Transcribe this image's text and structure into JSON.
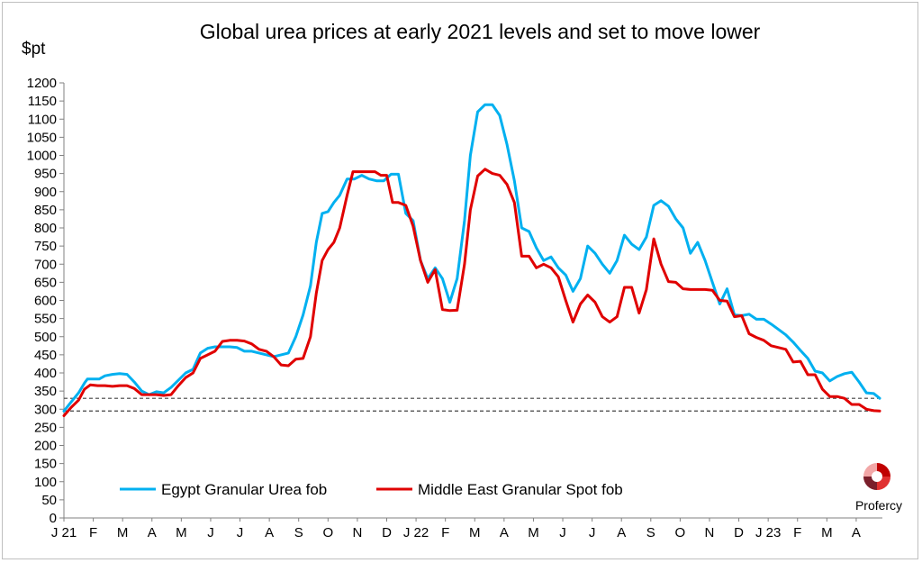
{
  "chart_data": {
    "type": "line",
    "title": "Global urea prices at early 2021 levels and set to move lower",
    "ylabel": "$pt",
    "ylim": [
      0,
      1200
    ],
    "ytick_step": 50,
    "x_labels": [
      "J 21",
      "F",
      "M",
      "A",
      "M",
      "J",
      "J",
      "A",
      "S",
      "O",
      "N",
      "D",
      "J 22",
      "F",
      "M",
      "A",
      "M",
      "J",
      "J",
      "A",
      "S",
      "O",
      "N",
      "D",
      "J 23",
      "F",
      "M",
      "A"
    ],
    "legend_placement": "bottom",
    "grid": false,
    "reference_lines": [
      330,
      295
    ],
    "series": [
      {
        "name": "Egypt Granular Urea fob",
        "color": "#00b0f0",
        "points": [
          [
            0.0,
            295
          ],
          [
            0.5,
            320
          ],
          [
            1.0,
            345
          ],
          [
            1.4,
            372
          ],
          [
            1.6,
            383
          ],
          [
            2.0,
            383
          ],
          [
            2.4,
            383
          ],
          [
            2.8,
            392
          ],
          [
            3.3,
            396
          ],
          [
            3.8,
            398
          ],
          [
            4.3,
            396
          ],
          [
            4.8,
            375
          ],
          [
            5.3,
            350
          ],
          [
            5.8,
            340
          ],
          [
            6.3,
            348
          ],
          [
            6.8,
            345
          ],
          [
            7.3,
            360
          ],
          [
            7.8,
            380
          ],
          [
            8.3,
            400
          ],
          [
            8.8,
            410
          ],
          [
            9.3,
            455
          ],
          [
            9.8,
            468
          ],
          [
            10.3,
            472
          ],
          [
            10.8,
            472
          ],
          [
            11.3,
            472
          ],
          [
            11.8,
            470
          ],
          [
            12.3,
            460
          ],
          [
            12.8,
            460
          ],
          [
            13.3,
            455
          ],
          [
            13.8,
            450
          ],
          [
            14.3,
            445
          ],
          [
            14.8,
            450
          ],
          [
            15.3,
            455
          ],
          [
            15.8,
            500
          ],
          [
            16.3,
            560
          ],
          [
            16.8,
            640
          ],
          [
            17.2,
            760
          ],
          [
            17.6,
            840
          ],
          [
            18.0,
            845
          ],
          [
            18.4,
            870
          ],
          [
            18.8,
            890
          ],
          [
            19.3,
            935
          ],
          [
            19.8,
            935
          ],
          [
            20.3,
            945
          ],
          [
            20.8,
            935
          ],
          [
            21.3,
            930
          ],
          [
            21.8,
            930
          ],
          [
            22.3,
            948
          ],
          [
            22.8,
            948
          ],
          [
            23.3,
            840
          ],
          [
            23.8,
            820
          ],
          [
            24.3,
            710
          ],
          [
            24.8,
            660
          ],
          [
            25.3,
            690
          ],
          [
            25.8,
            660
          ],
          [
            26.3,
            595
          ],
          [
            26.8,
            660
          ],
          [
            27.3,
            820
          ],
          [
            27.7,
            1000
          ],
          [
            28.2,
            1120
          ],
          [
            28.7,
            1140
          ],
          [
            29.2,
            1140
          ],
          [
            29.7,
            1110
          ],
          [
            30.2,
            1030
          ],
          [
            30.7,
            930
          ],
          [
            31.2,
            800
          ],
          [
            31.7,
            790
          ],
          [
            32.2,
            745
          ],
          [
            32.7,
            710
          ],
          [
            33.2,
            720
          ],
          [
            33.7,
            690
          ],
          [
            34.2,
            670
          ],
          [
            34.7,
            625
          ],
          [
            35.2,
            660
          ],
          [
            35.7,
            750
          ],
          [
            36.2,
            730
          ],
          [
            36.7,
            700
          ],
          [
            37.2,
            675
          ],
          [
            37.7,
            710
          ],
          [
            38.2,
            780
          ],
          [
            38.7,
            755
          ],
          [
            39.2,
            740
          ],
          [
            39.7,
            775
          ],
          [
            40.2,
            862
          ],
          [
            40.7,
            875
          ],
          [
            41.2,
            860
          ],
          [
            41.7,
            825
          ],
          [
            42.2,
            800
          ],
          [
            42.7,
            730
          ],
          [
            43.2,
            760
          ],
          [
            43.7,
            710
          ],
          [
            44.2,
            650
          ],
          [
            44.7,
            590
          ],
          [
            45.2,
            632
          ],
          [
            45.7,
            560
          ],
          [
            46.2,
            558
          ],
          [
            46.7,
            562
          ],
          [
            47.2,
            548
          ],
          [
            47.7,
            548
          ],
          [
            48.2,
            535
          ],
          [
            48.7,
            520
          ],
          [
            49.2,
            505
          ],
          [
            49.7,
            485
          ],
          [
            50.2,
            462
          ],
          [
            50.7,
            440
          ],
          [
            51.2,
            405
          ],
          [
            51.7,
            400
          ],
          [
            52.2,
            378
          ],
          [
            52.7,
            390
          ],
          [
            53.2,
            398
          ],
          [
            53.7,
            402
          ],
          [
            54.2,
            375
          ],
          [
            54.7,
            345
          ],
          [
            55.2,
            343
          ],
          [
            55.6,
            330
          ]
        ]
      },
      {
        "name": "Middle East Granular Spot fob",
        "color": "#e00000",
        "points": [
          [
            0.0,
            282
          ],
          [
            0.5,
            305
          ],
          [
            1.0,
            325
          ],
          [
            1.4,
            355
          ],
          [
            1.8,
            367
          ],
          [
            2.3,
            365
          ],
          [
            2.8,
            365
          ],
          [
            3.3,
            363
          ],
          [
            3.8,
            365
          ],
          [
            4.3,
            365
          ],
          [
            4.8,
            357
          ],
          [
            5.3,
            340
          ],
          [
            5.8,
            340
          ],
          [
            6.3,
            340
          ],
          [
            6.8,
            338
          ],
          [
            7.3,
            340
          ],
          [
            7.8,
            365
          ],
          [
            8.3,
            387
          ],
          [
            8.8,
            400
          ],
          [
            9.3,
            440
          ],
          [
            9.8,
            450
          ],
          [
            10.3,
            460
          ],
          [
            10.8,
            487
          ],
          [
            11.3,
            490
          ],
          [
            11.8,
            490
          ],
          [
            12.3,
            488
          ],
          [
            12.8,
            480
          ],
          [
            13.3,
            465
          ],
          [
            13.8,
            460
          ],
          [
            14.3,
            445
          ],
          [
            14.8,
            422
          ],
          [
            15.3,
            420
          ],
          [
            15.8,
            438
          ],
          [
            16.3,
            440
          ],
          [
            16.8,
            500
          ],
          [
            17.2,
            620
          ],
          [
            17.6,
            710
          ],
          [
            18.0,
            740
          ],
          [
            18.4,
            760
          ],
          [
            18.8,
            800
          ],
          [
            19.3,
            890
          ],
          [
            19.7,
            955
          ],
          [
            20.2,
            955
          ],
          [
            20.7,
            955
          ],
          [
            21.2,
            955
          ],
          [
            21.6,
            945
          ],
          [
            22.0,
            945
          ],
          [
            22.4,
            870
          ],
          [
            22.8,
            870
          ],
          [
            23.3,
            862
          ],
          [
            23.8,
            805
          ],
          [
            24.3,
            710
          ],
          [
            24.8,
            650
          ],
          [
            25.3,
            685
          ],
          [
            25.8,
            575
          ],
          [
            26.3,
            572
          ],
          [
            26.8,
            573
          ],
          [
            27.3,
            700
          ],
          [
            27.7,
            850
          ],
          [
            28.2,
            943
          ],
          [
            28.7,
            962
          ],
          [
            29.2,
            950
          ],
          [
            29.7,
            945
          ],
          [
            30.2,
            920
          ],
          [
            30.7,
            870
          ],
          [
            31.2,
            722
          ],
          [
            31.7,
            722
          ],
          [
            32.2,
            690
          ],
          [
            32.7,
            700
          ],
          [
            33.2,
            690
          ],
          [
            33.7,
            665
          ],
          [
            34.2,
            600
          ],
          [
            34.7,
            540
          ],
          [
            35.2,
            590
          ],
          [
            35.7,
            615
          ],
          [
            36.2,
            595
          ],
          [
            36.7,
            555
          ],
          [
            37.2,
            540
          ],
          [
            37.7,
            555
          ],
          [
            38.2,
            636
          ],
          [
            38.7,
            636
          ],
          [
            39.2,
            565
          ],
          [
            39.7,
            630
          ],
          [
            40.2,
            770
          ],
          [
            40.7,
            700
          ],
          [
            41.2,
            652
          ],
          [
            41.7,
            650
          ],
          [
            42.2,
            632
          ],
          [
            42.7,
            630
          ],
          [
            43.2,
            630
          ],
          [
            43.7,
            630
          ],
          [
            44.2,
            628
          ],
          [
            44.7,
            600
          ],
          [
            45.2,
            598
          ],
          [
            45.7,
            555
          ],
          [
            46.2,
            558
          ],
          [
            46.7,
            508
          ],
          [
            47.2,
            498
          ],
          [
            47.7,
            490
          ],
          [
            48.2,
            475
          ],
          [
            48.7,
            470
          ],
          [
            49.2,
            465
          ],
          [
            49.7,
            430
          ],
          [
            50.2,
            432
          ],
          [
            50.7,
            395
          ],
          [
            51.2,
            395
          ],
          [
            51.7,
            355
          ],
          [
            52.2,
            335
          ],
          [
            52.7,
            335
          ],
          [
            53.2,
            330
          ],
          [
            53.7,
            313
          ],
          [
            54.2,
            313
          ],
          [
            54.7,
            300
          ],
          [
            55.2,
            296
          ],
          [
            55.6,
            295
          ]
        ]
      }
    ]
  },
  "brand": {
    "name": "Profercy"
  }
}
